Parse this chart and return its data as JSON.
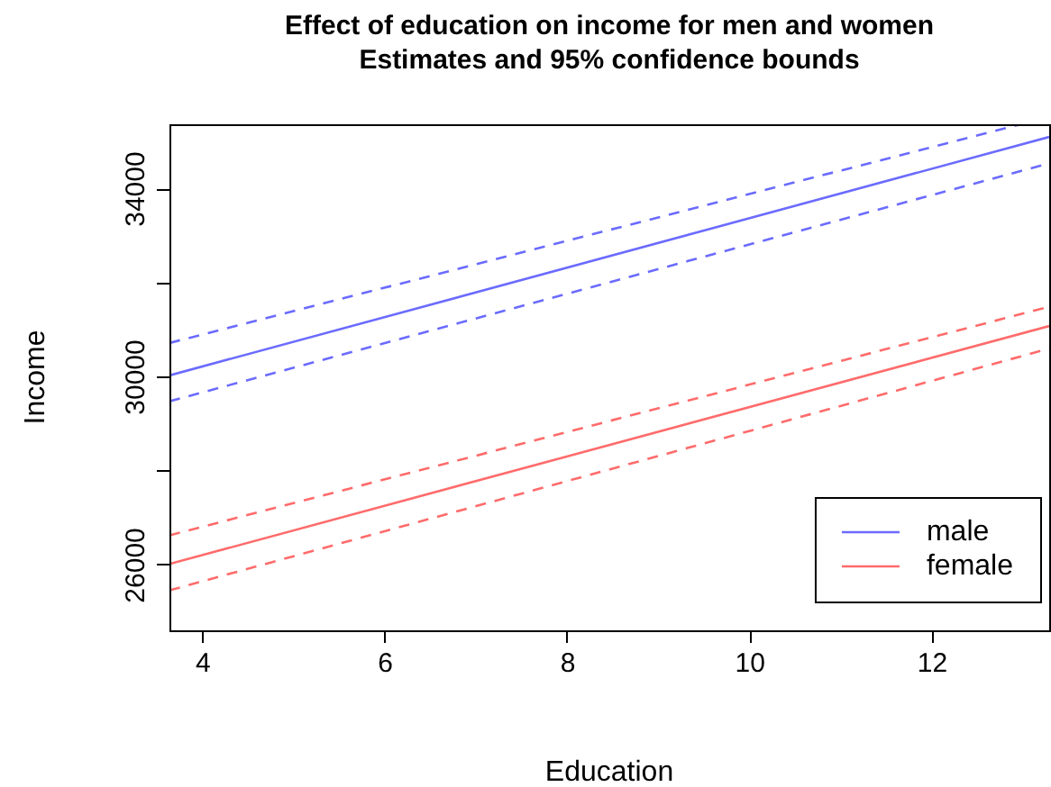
{
  "chart_data": {
    "type": "line",
    "title": "Effect of education on income for men and women",
    "subtitle": "Estimates and 95% confidence bounds",
    "xlabel": "Education",
    "ylabel": "Income",
    "xlim": [
      3.63,
      13.28
    ],
    "xticks": [
      4,
      6,
      8,
      10,
      12
    ],
    "ylim": [
      24620,
      35380
    ],
    "yticks": [
      26000,
      {
        "value": 28000,
        "label": null
      },
      30000,
      {
        "value": 32000,
        "label": null
      },
      34000
    ],
    "grid": false,
    "legend": "bottom right",
    "marker": "none",
    "series": [
      {
        "name": "male",
        "color": "#6b6bff",
        "line_style": "solid",
        "x": [
          3.63,
          13.28
        ],
        "values": [
          30040,
          35110
        ]
      },
      {
        "color": "#6b6bff",
        "line_style": "dashed",
        "x": [
          3.63,
          12.97
        ],
        "values": [
          30730,
          35380
        ]
      },
      {
        "color": "#6b6bff",
        "line_style": "dashed",
        "x": [
          3.63,
          13.28
        ],
        "values": [
          29490,
          34550
        ]
      },
      {
        "name": "female",
        "color": "#ff6b6b",
        "line_style": "solid",
        "x": [
          3.63,
          13.28
        ],
        "values": [
          26030,
          31090
        ]
      },
      {
        "color": "#ff6b6b",
        "line_style": "dashed",
        "x": [
          3.63,
          13.28
        ],
        "values": [
          26640,
          31500
        ]
      },
      {
        "color": "#ff6b6b",
        "line_style": "dashed",
        "x": [
          3.63,
          13.28
        ],
        "values": [
          25470,
          30610
        ]
      }
    ]
  }
}
